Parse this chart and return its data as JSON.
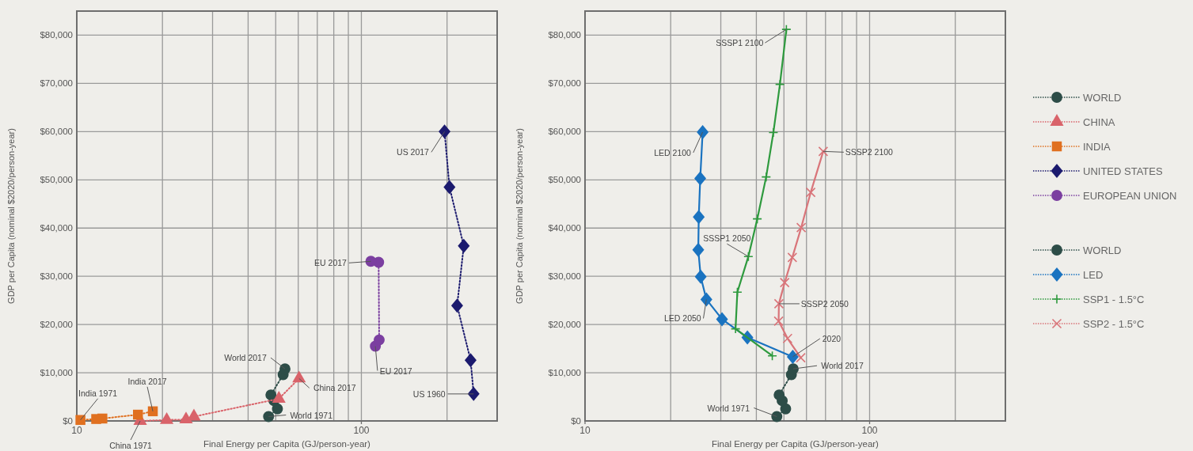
{
  "chart_data": [
    {
      "type": "line",
      "xlabel": "Final Energy per Capita (GJ/person-year)",
      "ylabel": "GDP per Capita (nominal $2020/person-year)",
      "log": "x",
      "xlim": [
        10,
        300
      ],
      "ylim": [
        0,
        85000
      ],
      "xticks": [
        {
          "value": 10,
          "label": "10"
        },
        {
          "value": 20,
          "label": null
        },
        {
          "value": 30,
          "label": null
        },
        {
          "value": 40,
          "label": null
        },
        {
          "value": 50,
          "label": null
        },
        {
          "value": 60,
          "label": null
        },
        {
          "value": 70,
          "label": null
        },
        {
          "value": 80,
          "label": null
        },
        {
          "value": 90,
          "label": null
        },
        {
          "value": 100,
          "label": "100"
        },
        {
          "value": 200,
          "label": null
        }
      ],
      "yticks": [
        {
          "value": 0,
          "label": "$0"
        },
        {
          "value": 10000,
          "label": "$10,000"
        },
        {
          "value": 20000,
          "label": "$20,000"
        },
        {
          "value": 30000,
          "label": "$30,000"
        },
        {
          "value": 40000,
          "label": "$40,000"
        },
        {
          "value": 50000,
          "label": "$50,000"
        },
        {
          "value": 60000,
          "label": "$60,000"
        },
        {
          "value": 70000,
          "label": "$70,000"
        },
        {
          "value": 80000,
          "label": "$80,000"
        }
      ],
      "grid": true,
      "legend": "right",
      "series": [
        {
          "name": "WORLD",
          "color": "#2d4d48",
          "marker": "circle",
          "line_style": "dotted",
          "x": [
            47.2,
            50.7,
            49.3,
            48.1,
            53.1,
            53.9
          ],
          "values": [
            900,
            2500,
            4200,
            5400,
            9600,
            10800
          ]
        },
        {
          "name": "CHINA",
          "color": "#d9636a",
          "marker": "triangle",
          "line_style": "dotted",
          "x": [
            16.7,
            20.7,
            24.2,
            25.8,
            51.3,
            60.4
          ],
          "values": [
            0,
            200,
            300,
            900,
            4600,
            8800
          ]
        },
        {
          "name": "INDIA",
          "color": "#e07020",
          "marker": "square",
          "line_style": "dotted",
          "x": [
            10.3,
            11.7,
            12.3,
            16.4,
            18.5
          ],
          "values": [
            200,
            400,
            500,
            1300,
            2000
          ]
        },
        {
          "name": "UNITED STATES",
          "color": "#1b1a6e",
          "marker": "diamond",
          "line_style": "dotted",
          "x": [
            248,
            242,
            217,
            229,
            204,
            196
          ],
          "values": [
            5600,
            12600,
            23900,
            36300,
            48500,
            60000
          ]
        },
        {
          "name": "EUROPEAN UNION",
          "color": "#7b3fa0",
          "marker": "circle",
          "line_style": "dotted",
          "x": [
            112,
            115.5,
            115,
            108
          ],
          "values": [
            15500,
            16800,
            32900,
            33100
          ]
        }
      ],
      "annotations": [
        {
          "text": "US 2017",
          "x": 196,
          "y": 60000
        },
        {
          "text": "US 1960",
          "x": 248,
          "y": 5600
        },
        {
          "text": "EU 2017",
          "x": 108,
          "y": 33100
        },
        {
          "text": "EU 2017",
          "x": 112,
          "y": 15500
        },
        {
          "text": "World 2017",
          "x": 53.9,
          "y": 10800
        },
        {
          "text": "World 1971",
          "x": 47.2,
          "y": 900
        },
        {
          "text": "China 2017",
          "x": 60.4,
          "y": 8800
        },
        {
          "text": "China 1971",
          "x": 16.7,
          "y": 0
        },
        {
          "text": "India 1971",
          "x": 10.3,
          "y": 200
        },
        {
          "text": "India 2017",
          "x": 18.5,
          "y": 2000
        }
      ]
    },
    {
      "type": "line",
      "xlabel": "Final Energy per Capita (GJ/person-year)",
      "ylabel": "GDP per Capita (nominal $2020/person-year)",
      "log": "x",
      "xlim": [
        10,
        300
      ],
      "ylim": [
        0,
        85000
      ],
      "xticks": [
        {
          "value": 10,
          "label": "10"
        },
        {
          "value": 20,
          "label": null
        },
        {
          "value": 30,
          "label": null
        },
        {
          "value": 40,
          "label": null
        },
        {
          "value": 50,
          "label": null
        },
        {
          "value": 60,
          "label": null
        },
        {
          "value": 70,
          "label": null
        },
        {
          "value": 80,
          "label": null
        },
        {
          "value": 90,
          "label": null
        },
        {
          "value": 100,
          "label": "100"
        },
        {
          "value": 200,
          "label": null
        }
      ],
      "yticks": [
        {
          "value": 0,
          "label": "$0"
        },
        {
          "value": 10000,
          "label": "$10,000"
        },
        {
          "value": 20000,
          "label": "$20,000"
        },
        {
          "value": 30000,
          "label": "$30,000"
        },
        {
          "value": 40000,
          "label": "$40,000"
        },
        {
          "value": 50000,
          "label": "$50,000"
        },
        {
          "value": 60000,
          "label": "$60,000"
        },
        {
          "value": 70000,
          "label": "$70,000"
        },
        {
          "value": 80000,
          "label": "$80,000"
        }
      ],
      "grid": true,
      "legend": "right",
      "series": [
        {
          "name": "WORLD",
          "color": "#2d4d48",
          "marker": "circle",
          "line_style": "dotted",
          "x": [
            47.2,
            50.7,
            49.3,
            48.1,
            53.1,
            53.9
          ],
          "values": [
            900,
            2500,
            4200,
            5400,
            9600,
            10800
          ]
        },
        {
          "name": "LED",
          "color": "#1a73c0",
          "marker": "diamond",
          "line_style": "solid",
          "x": [
            53.7,
            37.2,
            30.3,
            26.7,
            25.5,
            25.0,
            25.1,
            25.4,
            25.9
          ],
          "values": [
            13300,
            17300,
            21100,
            25200,
            29900,
            35500,
            42300,
            50300,
            59900
          ]
        },
        {
          "name": "SSP1 - 1.5°C",
          "color": "#2e9a3e",
          "marker": "plus",
          "line_style": "solid",
          "x": [
            45.5,
            33.8,
            34.3,
            37.5,
            40.3,
            43.3,
            45.9,
            48.4,
            51.0
          ],
          "values": [
            13500,
            19100,
            26700,
            34100,
            41900,
            50600,
            59800,
            69800,
            81200
          ]
        },
        {
          "name": "SSP2 - 1.5°C",
          "color": "#d9757a",
          "marker": "cross",
          "line_style": "solid",
          "x": [
            57.3,
            51.5,
            47.9,
            48.0,
            50.3,
            53.5,
            57.5,
            62.1,
            68.7
          ],
          "values": [
            13100,
            17100,
            20700,
            24300,
            28700,
            33900,
            40100,
            47400,
            55900
          ]
        }
      ],
      "annotations": [
        {
          "text": "SSSP1 2100",
          "x": 51.0,
          "y": 81200
        },
        {
          "text": "LED 2100",
          "x": 25.9,
          "y": 59900
        },
        {
          "text": "SSSP2 2100",
          "x": 68.7,
          "y": 55900
        },
        {
          "text": "SSSP1 2050",
          "x": 37.5,
          "y": 34100
        },
        {
          "text": "SSSP2 2050",
          "x": 48.0,
          "y": 24300
        },
        {
          "text": "LED 2050",
          "x": 26.7,
          "y": 25200
        },
        {
          "text": "2020",
          "x": 53.7,
          "y": 13300
        },
        {
          "text": "World 2017",
          "x": 53.9,
          "y": 10800
        },
        {
          "text": "World 1971",
          "x": 47.2,
          "y": 900
        }
      ]
    }
  ]
}
